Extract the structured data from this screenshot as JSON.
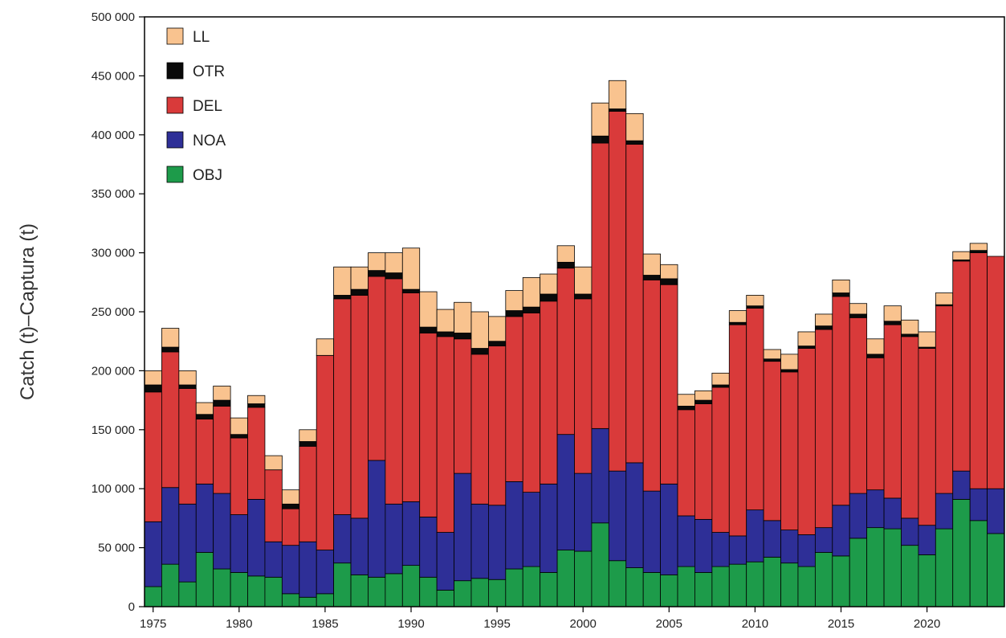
{
  "chart_data": {
    "type": "bar",
    "stacked": true,
    "title": "",
    "xlabel": "",
    "ylabel": "Catch (t)–Captura (t)",
    "ylim": [
      0,
      500000
    ],
    "y_ticks": [
      "0",
      "50 000",
      "100 000",
      "150 000",
      "200 000",
      "250 000",
      "300 000",
      "350 000",
      "400 000",
      "450 000",
      "500 000"
    ],
    "x_ticks": [
      "1975",
      "1980",
      "1985",
      "1990",
      "1995",
      "2000",
      "2005",
      "2010",
      "2015",
      "2020"
    ],
    "legend_position": "top-left",
    "categories": [
      "1975",
      "1976",
      "1977",
      "1978",
      "1979",
      "1980",
      "1981",
      "1982",
      "1983",
      "1984",
      "1985",
      "1986",
      "1987",
      "1988",
      "1989",
      "1990",
      "1991",
      "1992",
      "1993",
      "1994",
      "1995",
      "1996",
      "1997",
      "1998",
      "1999",
      "2000",
      "2001",
      "2002",
      "2003",
      "2004",
      "2005",
      "2006",
      "2007",
      "2008",
      "2009",
      "2010",
      "2011",
      "2012",
      "2013",
      "2014",
      "2015",
      "2016",
      "2017",
      "2018",
      "2019",
      "2020",
      "2021",
      "2022",
      "2023",
      "2024"
    ],
    "series": [
      {
        "name": "OBJ",
        "color": "#1d9b4a",
        "values": [
          17000,
          36000,
          21000,
          46000,
          32000,
          29000,
          26000,
          25000,
          11000,
          8000,
          11000,
          37000,
          27000,
          25000,
          28000,
          35000,
          25000,
          14000,
          22000,
          24000,
          23000,
          32000,
          34000,
          29000,
          48000,
          47000,
          71000,
          39000,
          33000,
          29000,
          27000,
          34000,
          29000,
          34000,
          36000,
          38000,
          42000,
          37000,
          34000,
          46000,
          43000,
          58000,
          67000,
          66000,
          52000,
          44000,
          66000,
          91000,
          73000,
          62000
        ]
      },
      {
        "name": "NOA",
        "color": "#2e2f97",
        "values": [
          55000,
          65000,
          66000,
          58000,
          64000,
          49000,
          65000,
          30000,
          41000,
          47000,
          37000,
          41000,
          48000,
          99000,
          59000,
          54000,
          51000,
          49000,
          91000,
          63000,
          63000,
          74000,
          63000,
          75000,
          98000,
          66000,
          80000,
          76000,
          89000,
          69000,
          77000,
          43000,
          45000,
          29000,
          24000,
          44000,
          31000,
          28000,
          27000,
          21000,
          43000,
          38000,
          32000,
          26000,
          23000,
          25000,
          30000,
          24000,
          27000,
          38000
        ]
      },
      {
        "name": "DEL",
        "color": "#d93a3a",
        "values": [
          110000,
          115000,
          98000,
          55000,
          74000,
          65000,
          78000,
          61000,
          31000,
          81000,
          165000,
          183000,
          189000,
          156000,
          191000,
          177000,
          156000,
          166000,
          114000,
          127000,
          135000,
          140000,
          152000,
          155000,
          141000,
          148000,
          242000,
          305000,
          270000,
          179000,
          169000,
          90000,
          98000,
          123000,
          179000,
          171000,
          135000,
          134000,
          158000,
          168000,
          177000,
          149000,
          112000,
          147000,
          154000,
          150000,
          159000,
          178000,
          200000,
          197000
        ]
      },
      {
        "name": "OTR",
        "color": "#0a0a0a",
        "values": [
          6000,
          4000,
          3000,
          4000,
          5000,
          3000,
          3000,
          0,
          4000,
          4000,
          0,
          3000,
          5000,
          5000,
          5000,
          3000,
          5000,
          4000,
          5000,
          5000,
          4000,
          5000,
          5000,
          6000,
          5000,
          4000,
          6000,
          2000,
          3000,
          4000,
          5000,
          3000,
          3000,
          2000,
          2000,
          2000,
          2000,
          2000,
          2000,
          3000,
          3000,
          3000,
          3000,
          3000,
          2000,
          1000,
          1000,
          1000,
          2000,
          0
        ]
      },
      {
        "name": "LL",
        "color": "#f9c38f",
        "values": [
          12000,
          16000,
          12000,
          10000,
          12000,
          14000,
          7000,
          12000,
          12000,
          10000,
          14000,
          24000,
          19000,
          15000,
          17000,
          35000,
          30000,
          19000,
          26000,
          31000,
          21000,
          17000,
          25000,
          17000,
          14000,
          23000,
          28000,
          24000,
          23000,
          18000,
          12000,
          10000,
          8000,
          10000,
          10000,
          9000,
          8000,
          13000,
          12000,
          10000,
          11000,
          9000,
          13000,
          13000,
          12000,
          13000,
          10000,
          7000,
          6000,
          0
        ]
      }
    ]
  }
}
